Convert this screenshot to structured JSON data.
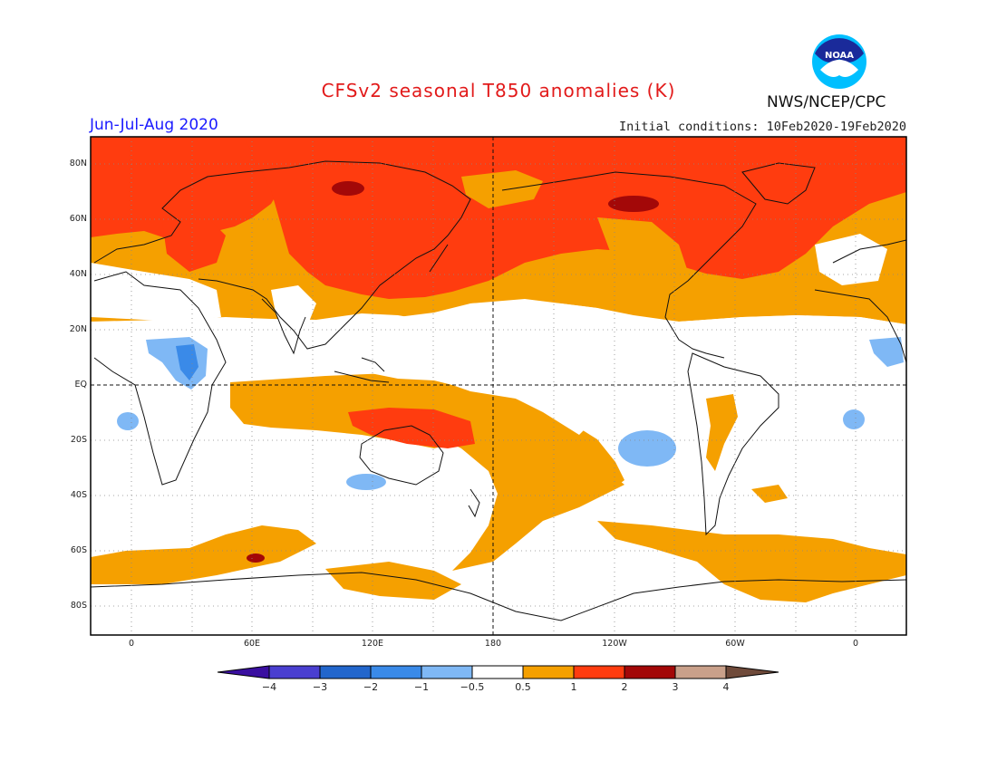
{
  "title": "CFSv2 seasonal T850 anomalies (K)",
  "period": "Jun-Jul-Aug 2020",
  "initial_conditions": "Initial conditions: 10Feb2020-19Feb2020",
  "agency": "NWS/NCEP/CPC",
  "logo_text": "NOAA",
  "lat_labels": [
    "80N",
    "60N",
    "40N",
    "20N",
    "EQ",
    "20S",
    "40S",
    "60S",
    "80S"
  ],
  "lon_labels": [
    "0",
    "60E",
    "120E",
    "180",
    "120W",
    "60W",
    "0"
  ],
  "colorbar": {
    "labels": [
      "−4",
      "−3",
      "−2",
      "−1",
      "−0.5",
      "0.5",
      "1",
      "2",
      "3",
      "4"
    ],
    "colors": [
      "#3a0fa0",
      "#4a3fd0",
      "#2266cc",
      "#3a8ae8",
      "#7fb8f5",
      "#ffffff",
      "#f5a000",
      "#ff3c0f",
      "#a30808",
      "#c9a08a",
      "#6f4a3a"
    ]
  },
  "map_colors": {
    "ocean_bg": "#ffffff",
    "anom_0_5_to_1": "#f5a000",
    "anom_1_to_2": "#ff3c0f",
    "anom_2_to_3": "#a30808",
    "anom_neg_0_5_to_1": "#7fb8f5",
    "anom_neg_1_to_2": "#3a8ae8"
  }
}
